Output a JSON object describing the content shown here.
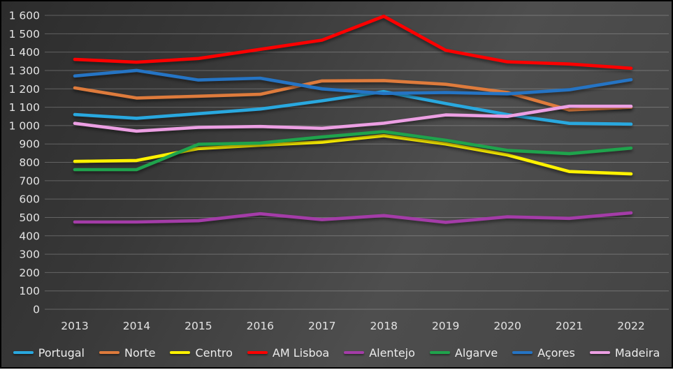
{
  "chart_data": {
    "type": "line",
    "title": "",
    "xlabel": "",
    "ylabel": "",
    "x": [
      "2013",
      "2014",
      "2015",
      "2016",
      "2017",
      "2018",
      "2019",
      "2020",
      "2021",
      "2022"
    ],
    "y_ticks": [
      "0",
      "100",
      "200",
      "300",
      "400",
      "500",
      "600",
      "700",
      "800",
      "900",
      "1 000",
      "1 100",
      "1 200",
      "1 300",
      "1 400",
      "1 500",
      "1 600"
    ],
    "ylim": [
      0,
      1600
    ],
    "ytick_step": 100,
    "grid": "horizontal",
    "legend_position": "bottom",
    "background": "dark-gray-gradient",
    "series": [
      {
        "name": "Portugal",
        "color": "#29A8DF",
        "values": [
          1060,
          1040,
          1065,
          1090,
          1135,
          1185,
          1120,
          1060,
          1012,
          1008
        ]
      },
      {
        "name": "Norte",
        "color": "#DE7B3C",
        "values": [
          1205,
          1150,
          1160,
          1170,
          1243,
          1245,
          1225,
          1180,
          1085,
          1100
        ]
      },
      {
        "name": "Centro",
        "color": "#FFF200",
        "values": [
          805,
          810,
          875,
          893,
          910,
          945,
          900,
          840,
          750,
          737
        ]
      },
      {
        "name": "AM Lisboa",
        "color": "#FF0000",
        "values": [
          1360,
          1345,
          1365,
          1415,
          1465,
          1595,
          1410,
          1347,
          1335,
          1312
        ]
      },
      {
        "name": "Alentejo",
        "color": "#A43CA8",
        "values": [
          475,
          475,
          482,
          520,
          488,
          510,
          473,
          503,
          495,
          525
        ]
      },
      {
        "name": "Algarve",
        "color": "#1FA34C",
        "values": [
          760,
          760,
          898,
          905,
          938,
          967,
          920,
          865,
          847,
          877
        ]
      },
      {
        "name": "Açores",
        "color": "#2574C4",
        "values": [
          1270,
          1300,
          1248,
          1258,
          1200,
          1175,
          1180,
          1173,
          1195,
          1250
        ]
      },
      {
        "name": "Madeira",
        "color": "#EC9FE3",
        "values": [
          1012,
          970,
          990,
          995,
          985,
          1013,
          1058,
          1050,
          1105,
          1105
        ]
      }
    ]
  }
}
